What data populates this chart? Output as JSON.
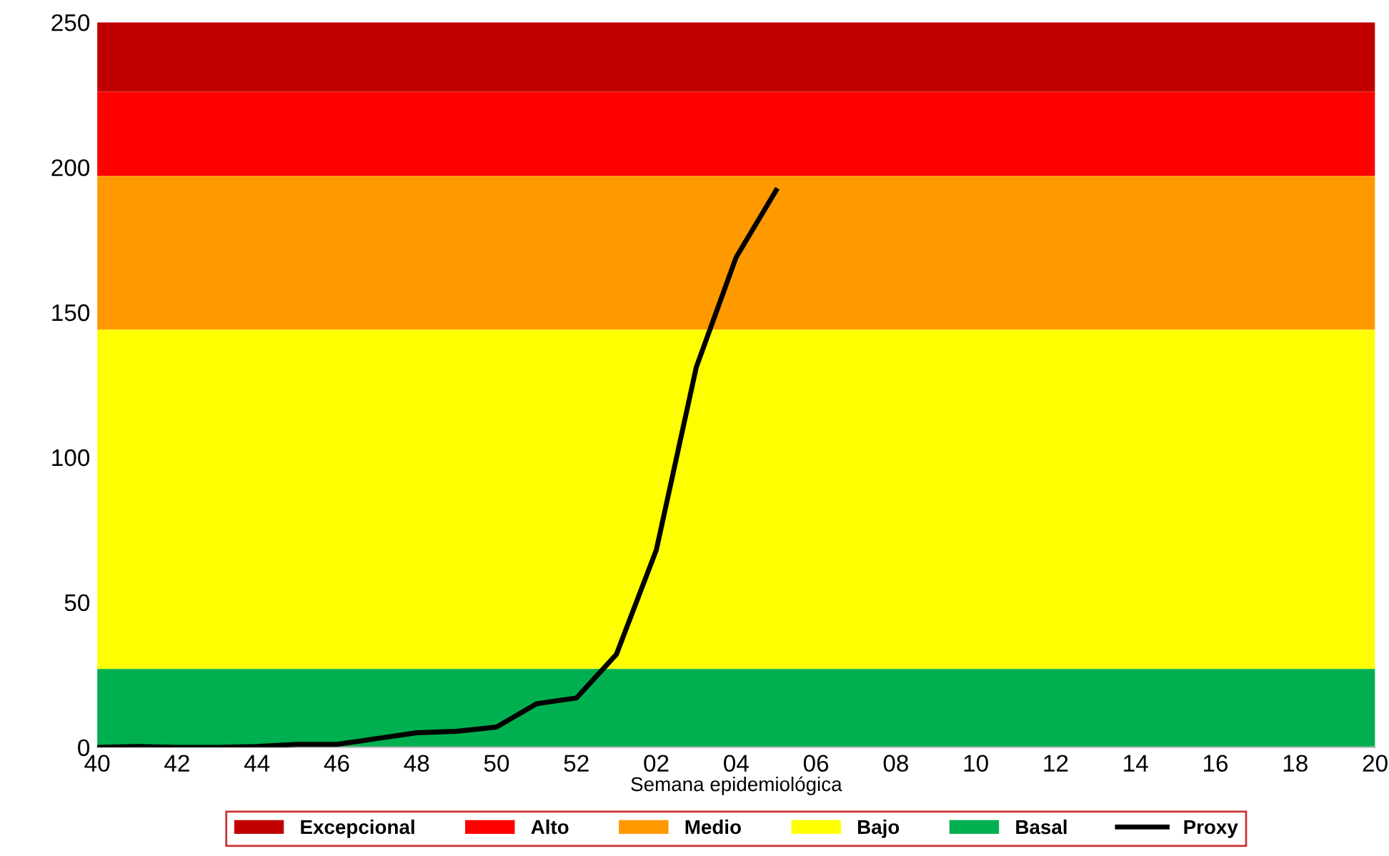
{
  "chart_data": {
    "type": "line",
    "xlabel": "Semana epidemiológica",
    "categories": [
      "40",
      null,
      "42",
      null,
      "44",
      null,
      "46",
      null,
      "48",
      null,
      "50",
      null,
      "52",
      null,
      "02",
      null,
      "04",
      null,
      "06",
      null,
      "08",
      null,
      "10",
      null,
      "12",
      null,
      "14",
      null,
      "16",
      null,
      "18",
      null,
      "20"
    ],
    "series": [
      {
        "name": "Proxy",
        "color": "#000000",
        "values": [
          0,
          0.3,
          0,
          0,
          0.3,
          1,
          1,
          3,
          5,
          5.5,
          7,
          15,
          17,
          32,
          68,
          131,
          169,
          192,
          null,
          null,
          null,
          null,
          null,
          null,
          null,
          null,
          null,
          null,
          null,
          null,
          null,
          null,
          null
        ]
      }
    ],
    "bands": [
      {
        "axis": "y",
        "from": 226,
        "to": 250,
        "label": "Excepcional",
        "color": "#c00000"
      },
      {
        "axis": "y",
        "from": 197,
        "to": 226,
        "label": "Alto",
        "color": "#ff0000"
      },
      {
        "axis": "y",
        "from": 144,
        "to": 197,
        "label": "Medio",
        "color": "#ff9900"
      },
      {
        "axis": "y",
        "from": 27,
        "to": 144,
        "label": "Bajo",
        "color": "#ffff00"
      },
      {
        "axis": "y",
        "from": 0,
        "to": 27,
        "label": "Basal",
        "color": "#00b050"
      }
    ],
    "ylim": [
      0,
      250
    ],
    "yticks": [
      0,
      50,
      100,
      150,
      200,
      250
    ],
    "grid": false,
    "legend": "bottom",
    "marker": "none",
    "line_style": "solid"
  }
}
